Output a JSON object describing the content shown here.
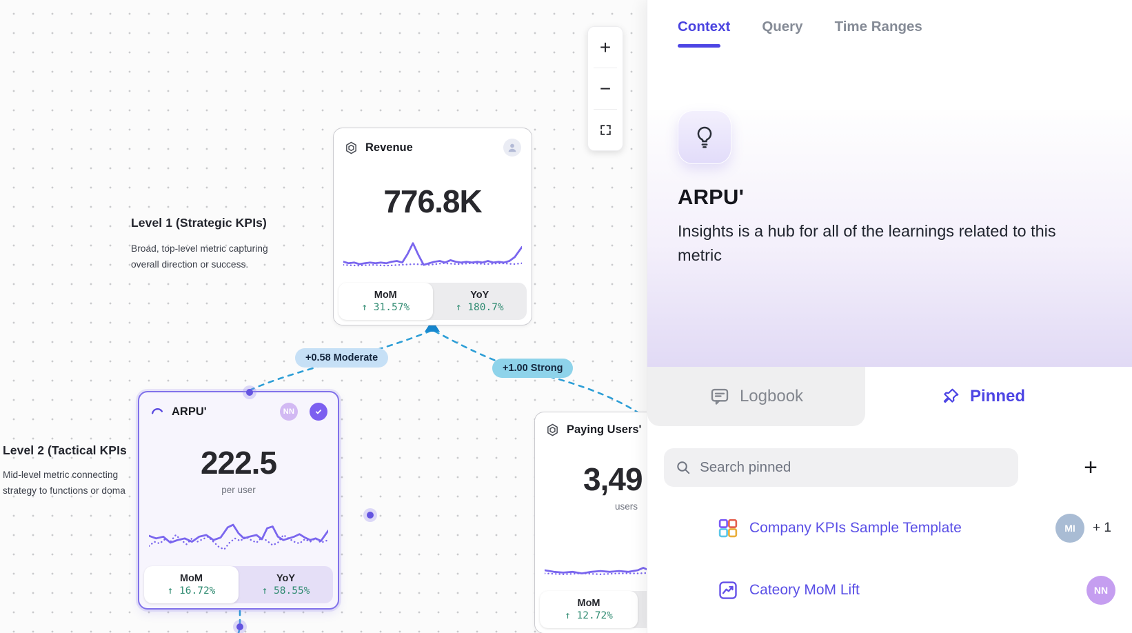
{
  "colors": {
    "accent_purple": "#4d45e4",
    "selected_card_border": "#8071ea",
    "sparkline_purple": "#7a66ee",
    "edge_blue": "#2d9ed6",
    "positive_green": "#2f8b71",
    "edge_label_moderate_bg": "#c6e0f6",
    "edge_label_strong_bg": "#8ed3ea"
  },
  "canvas": {
    "zoom_controls": {
      "zoom_in": "+",
      "zoom_out": "−"
    },
    "levels": [
      {
        "title": "Level 1 (Strategic KPIs)",
        "desc_line1": "Broad, top-level metric capturing",
        "desc_line2": "overall direction or success."
      },
      {
        "title": "Level 2 (Tactical KPIs",
        "desc_line1": "Mid-level metric connecting",
        "desc_line2": "strategy to functions or doma"
      }
    ],
    "edges": [
      {
        "label": "+0.58 Moderate"
      },
      {
        "label": "+1.00 Strong"
      }
    ],
    "cards": [
      {
        "title": "Revenue",
        "value": "776.8K",
        "mom_label": "MoM",
        "mom_value": "↑ 31.57%",
        "yoy_label": "YoY",
        "yoy_value": "↑ 180.7%",
        "spark": {
          "solid": [
            [
              0,
              60
            ],
            [
              3,
              64
            ],
            [
              6,
              62
            ],
            [
              9,
              66
            ],
            [
              12,
              64
            ],
            [
              15,
              62
            ],
            [
              18,
              64
            ],
            [
              21,
              62
            ],
            [
              24,
              64
            ],
            [
              27,
              60
            ],
            [
              30,
              58
            ],
            [
              33,
              62
            ],
            [
              36,
              40
            ],
            [
              39,
              12
            ],
            [
              42,
              42
            ],
            [
              45,
              68
            ],
            [
              48,
              64
            ],
            [
              51,
              60
            ],
            [
              54,
              58
            ],
            [
              57,
              62
            ],
            [
              60,
              56
            ],
            [
              63,
              60
            ],
            [
              66,
              62
            ],
            [
              69,
              60
            ],
            [
              72,
              62
            ],
            [
              75,
              60
            ],
            [
              78,
              62
            ],
            [
              81,
              58
            ],
            [
              84,
              62
            ],
            [
              87,
              60
            ],
            [
              90,
              62
            ],
            [
              93,
              58
            ],
            [
              96,
              48
            ],
            [
              100,
              22
            ]
          ],
          "dotted": [
            [
              0,
              68
            ],
            [
              8,
              70
            ],
            [
              16,
              68
            ],
            [
              24,
              70
            ],
            [
              32,
              68
            ],
            [
              40,
              66
            ],
            [
              48,
              68
            ],
            [
              56,
              64
            ],
            [
              64,
              66
            ],
            [
              72,
              64
            ],
            [
              80,
              66
            ],
            [
              88,
              64
            ],
            [
              96,
              66
            ],
            [
              100,
              64
            ]
          ]
        }
      },
      {
        "title": "ARPU'",
        "value": "222.5",
        "unit": "per user",
        "avatar": "NN",
        "mom_label": "MoM",
        "mom_value": "↑ 16.72%",
        "yoy_label": "YoY",
        "yoy_value": "↑ 58.55%",
        "spark": {
          "solid": [
            [
              0,
              42
            ],
            [
              4,
              48
            ],
            [
              8,
              44
            ],
            [
              12,
              58
            ],
            [
              16,
              52
            ],
            [
              20,
              48
            ],
            [
              24,
              56
            ],
            [
              28,
              44
            ],
            [
              32,
              40
            ],
            [
              36,
              52
            ],
            [
              40,
              46
            ],
            [
              44,
              22
            ],
            [
              47,
              16
            ],
            [
              50,
              36
            ],
            [
              53,
              48
            ],
            [
              56,
              44
            ],
            [
              60,
              40
            ],
            [
              63,
              50
            ],
            [
              66,
              24
            ],
            [
              69,
              20
            ],
            [
              72,
              44
            ],
            [
              75,
              52
            ],
            [
              78,
              48
            ],
            [
              81,
              44
            ],
            [
              84,
              38
            ],
            [
              87,
              46
            ],
            [
              90,
              52
            ],
            [
              93,
              48
            ],
            [
              96,
              54
            ],
            [
              100,
              30
            ]
          ],
          "dotted": [
            [
              0,
              66
            ],
            [
              3,
              56
            ],
            [
              6,
              60
            ],
            [
              9,
              50
            ],
            [
              12,
              56
            ],
            [
              15,
              40
            ],
            [
              18,
              52
            ],
            [
              21,
              62
            ],
            [
              24,
              48
            ],
            [
              27,
              56
            ],
            [
              30,
              50
            ],
            [
              33,
              44
            ],
            [
              36,
              56
            ],
            [
              39,
              68
            ],
            [
              42,
              74
            ],
            [
              45,
              58
            ],
            [
              48,
              48
            ],
            [
              51,
              54
            ],
            [
              54,
              44
            ],
            [
              57,
              52
            ],
            [
              60,
              58
            ],
            [
              63,
              46
            ],
            [
              66,
              54
            ],
            [
              69,
              64
            ],
            [
              72,
              58
            ],
            [
              75,
              40
            ],
            [
              78,
              48
            ],
            [
              81,
              56
            ],
            [
              84,
              60
            ],
            [
              87,
              50
            ],
            [
              90,
              56
            ],
            [
              93,
              48
            ],
            [
              96,
              58
            ],
            [
              100,
              52
            ]
          ]
        }
      },
      {
        "title": "Paying Users'",
        "value": "3,49",
        "unit": "users",
        "mom_label": "MoM",
        "mom_value": "↑ 12.72%",
        "spark": {
          "solid": [
            [
              0,
              62
            ],
            [
              5,
              66
            ],
            [
              10,
              68
            ],
            [
              15,
              66
            ],
            [
              20,
              70
            ],
            [
              25,
              66
            ],
            [
              30,
              64
            ],
            [
              35,
              66
            ],
            [
              40,
              64
            ],
            [
              45,
              66
            ],
            [
              50,
              62
            ],
            [
              53,
              56
            ],
            [
              56,
              62
            ],
            [
              60,
              64
            ],
            [
              64,
              60
            ],
            [
              68,
              36
            ],
            [
              71,
              14
            ],
            [
              74,
              34
            ],
            [
              77,
              58
            ],
            [
              80,
              66
            ],
            [
              85,
              64
            ],
            [
              90,
              66
            ],
            [
              95,
              64
            ],
            [
              100,
              66
            ]
          ],
          "dotted": [
            [
              0,
              70
            ],
            [
              10,
              72
            ],
            [
              20,
              70
            ],
            [
              30,
              72
            ],
            [
              40,
              70
            ],
            [
              50,
              70
            ],
            [
              60,
              68
            ],
            [
              70,
              70
            ],
            [
              80,
              68
            ],
            [
              90,
              70
            ],
            [
              100,
              68
            ]
          ]
        }
      }
    ]
  },
  "panel": {
    "tabs": [
      {
        "label": "Context",
        "active": true
      },
      {
        "label": "Query",
        "active": false
      },
      {
        "label": "Time Ranges",
        "active": false
      }
    ],
    "hero": {
      "title": "ARPU'",
      "description": "Insights is a hub for all of the learnings related to this metric"
    },
    "subtabs": [
      {
        "label": "Logbook",
        "active": false
      },
      {
        "label": "Pinned",
        "active": true
      }
    ],
    "search": {
      "placeholder": "Search pinned",
      "add_label": "+"
    },
    "pinned_items": [
      {
        "label": "Company KPIs Sample Template",
        "avatar": "MI",
        "extra": "+ 1"
      },
      {
        "label": "Cateory MoM Lift",
        "avatar": "NN"
      }
    ]
  }
}
